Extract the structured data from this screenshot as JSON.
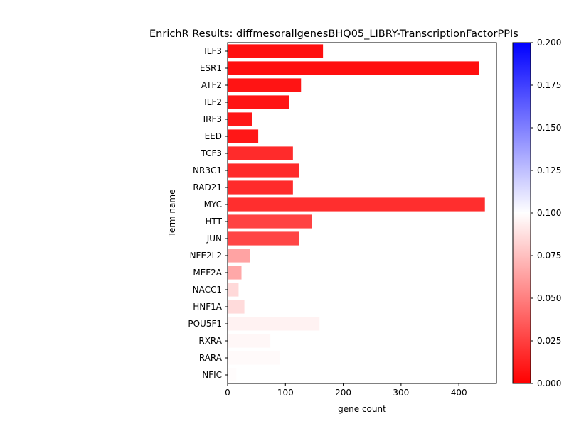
{
  "chart_data": {
    "type": "bar",
    "orientation": "horizontal",
    "title": "EnrichR Results: diffmesorallgenesBHQ05_LIBRY-TranscriptionFactorPPIs",
    "xlabel": "gene count",
    "ylabel": "Term name",
    "xlim": [
      0,
      465
    ],
    "x_ticks": [
      "0",
      "100",
      "200",
      "300",
      "400"
    ],
    "categories": [
      "ILF3",
      "ESR1",
      "ATF2",
      "ILF2",
      "IRF3",
      "EED",
      "TCF3",
      "NR3C1",
      "RAD21",
      "MYC",
      "HTT",
      "JUN",
      "NFE2L2",
      "MEF2A",
      "NACC1",
      "HNF1A",
      "POU5F1",
      "RXRA",
      "RARA",
      "NFIC"
    ],
    "values": [
      165,
      435,
      127,
      106,
      42,
      53,
      113,
      124,
      113,
      445,
      146,
      124,
      39,
      24,
      19,
      29,
      159,
      74,
      90,
      15
    ],
    "color_values": [
      0.006,
      0.006,
      0.008,
      0.008,
      0.009,
      0.009,
      0.017,
      0.017,
      0.017,
      0.018,
      0.026,
      0.027,
      0.064,
      0.066,
      0.085,
      0.086,
      0.095,
      0.097,
      0.098,
      0.099
    ],
    "colorbar": {
      "range": [
        0.0,
        0.2
      ],
      "ticks": [
        "0.000",
        "0.025",
        "0.050",
        "0.075",
        "0.100",
        "0.125",
        "0.150",
        "0.175",
        "0.200"
      ],
      "low_color": "#ff0000",
      "mid_color": "#ffffff",
      "high_color": "#0000ff"
    },
    "grid": false,
    "legend": "none"
  }
}
